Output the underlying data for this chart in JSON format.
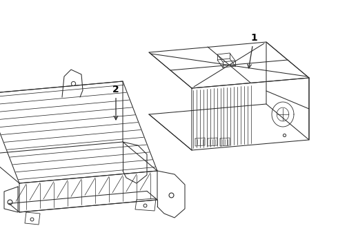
{
  "background_color": "#ffffff",
  "line_color": "#2a2a2a",
  "label_color": "#000000",
  "label1": "1",
  "label2": "2",
  "figsize": [
    4.9,
    3.6
  ],
  "dpi": 100
}
